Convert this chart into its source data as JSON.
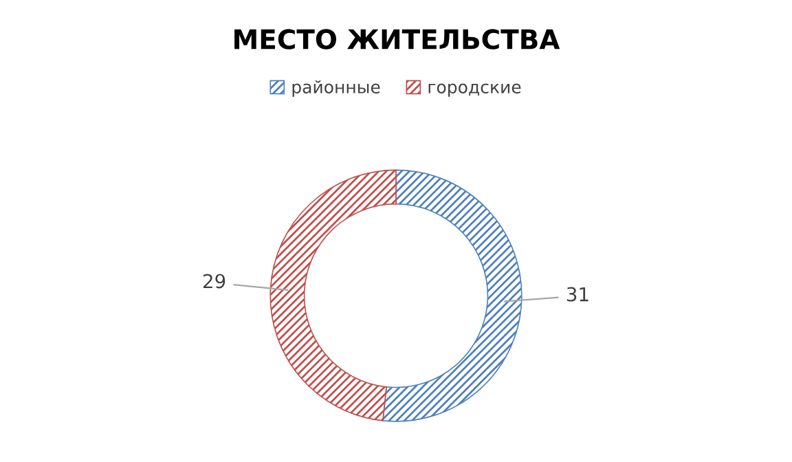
{
  "chart_data": {
    "type": "donut",
    "title": "МЕСТО ЖИТЕЛЬСТВА",
    "categories": [
      "районные",
      "городские"
    ],
    "values": [
      31,
      29
    ],
    "colors": [
      "#4f81bd",
      "#c0504d"
    ],
    "data_labels": true,
    "legend": "top"
  }
}
